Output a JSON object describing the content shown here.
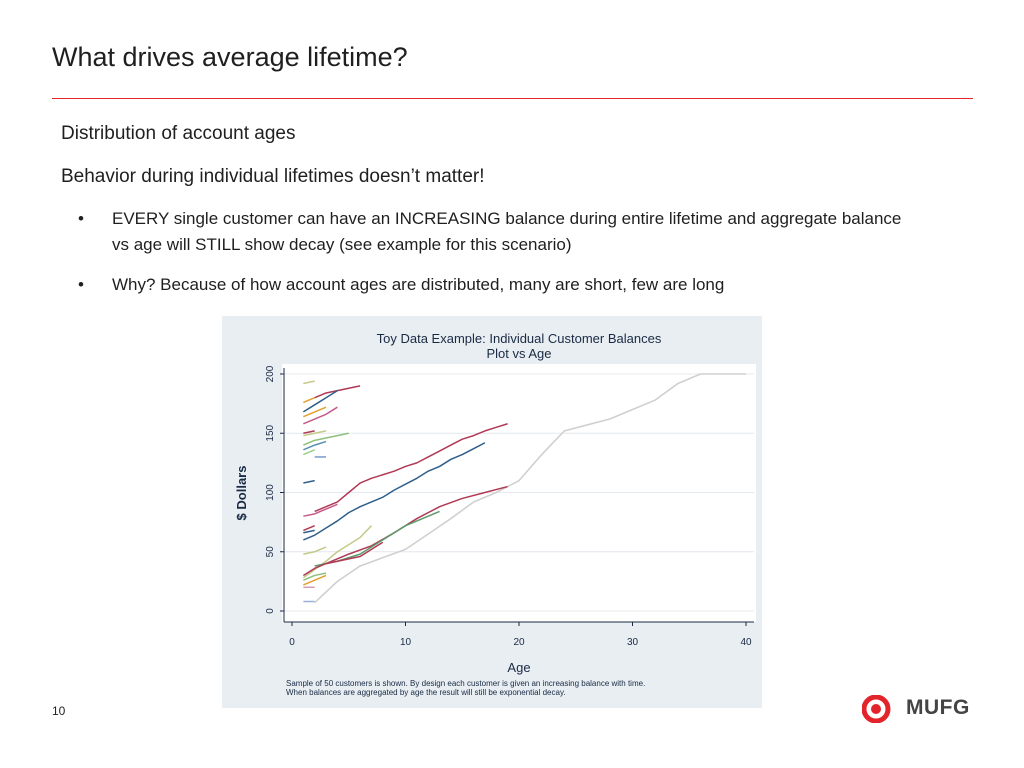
{
  "slide": {
    "title": "What drives average lifetime?",
    "subtitle1": "Distribution of account ages",
    "subtitle2": "Behavior during individual lifetimes doesn’t matter!",
    "bullets": [
      {
        "marker": "•",
        "text": "EVERY single customer can have an INCREASING balance during entire lifetime and aggregate balance vs age will STILL show decay  (see example for this scenario)"
      },
      {
        "marker": "•",
        "text": "Why? Because of how account ages are distributed, many are short, few are long"
      }
    ],
    "page_number": "10",
    "logo_text": "MUFG",
    "accent_color": "#e4242b"
  },
  "chart_data": {
    "type": "line",
    "title": "Toy Data Example: Individual Customer Balances",
    "subtitle": "Plot vs Age",
    "xlabel": "Age",
    "ylabel": "$ Dollars",
    "xlim": [
      0,
      40
    ],
    "ylim": [
      0,
      200
    ],
    "xticks": [
      0,
      10,
      20,
      30,
      40
    ],
    "yticks": [
      0,
      50,
      100,
      150,
      200
    ],
    "grid": true,
    "note_lines": [
      "Sample of 50 customers is shown. By design each customer is given an increasing balance with time.",
      "When balances are aggregated by age the result will still be exponential decay."
    ],
    "series": [
      {
        "color": "#d0d0d0",
        "x": [
          2,
          4,
          6,
          8,
          10,
          12,
          14,
          16,
          18,
          20,
          22,
          24,
          26,
          28,
          30,
          32,
          34,
          36,
          38,
          40
        ],
        "y": [
          7,
          25,
          38,
          45,
          52,
          65,
          78,
          92,
          100,
          110,
          132,
          152,
          157,
          162,
          170,
          178,
          192,
          200,
          200,
          200
        ]
      },
      {
        "color": "#b03a55",
        "x": [
          3,
          5,
          7,
          9,
          11,
          13,
          15,
          17,
          19
        ],
        "y": [
          40,
          48,
          55,
          66,
          78,
          88,
          95,
          100,
          105
        ]
      },
      {
        "color": "#b03a55",
        "x": [
          2,
          3,
          4,
          5,
          6,
          7,
          8,
          9,
          10,
          11,
          12,
          13,
          14,
          15,
          16,
          17,
          18,
          19
        ],
        "y": [
          84,
          88,
          92,
          100,
          108,
          112,
          115,
          118,
          122,
          125,
          130,
          135,
          140,
          145,
          148,
          152,
          155,
          158
        ]
      },
      {
        "color": "#2f5f8a",
        "x": [
          1,
          2,
          3,
          4,
          5,
          6,
          7,
          8,
          9,
          10,
          11,
          12,
          13,
          14,
          15,
          16,
          17
        ],
        "y": [
          60,
          64,
          70,
          76,
          83,
          88,
          92,
          96,
          102,
          107,
          112,
          118,
          122,
          128,
          132,
          137,
          142
        ]
      },
      {
        "color": "#c5c98a",
        "x": [
          1,
          2,
          3,
          4,
          5,
          6,
          7
        ],
        "y": [
          28,
          35,
          42,
          50,
          56,
          62,
          72
        ]
      },
      {
        "color": "#5a9a6a",
        "x": [
          2,
          4,
          6,
          8,
          10,
          12,
          13
        ],
        "y": [
          38,
          42,
          48,
          60,
          72,
          80,
          84
        ]
      },
      {
        "color": "#b03a55",
        "x": [
          1,
          2,
          3,
          4,
          5,
          6,
          7,
          8
        ],
        "y": [
          30,
          36,
          40,
          42,
          44,
          46,
          52,
          58
        ]
      },
      {
        "color": "#b03a55",
        "x": [
          2,
          3,
          4,
          5,
          6
        ],
        "y": [
          180,
          184,
          186,
          188,
          190
        ]
      },
      {
        "color": "#2f5f8a",
        "x": [
          1,
          2,
          3,
          4
        ],
        "y": [
          168,
          174,
          180,
          186
        ]
      },
      {
        "color": "#e0a030",
        "x": [
          1,
          2,
          3
        ],
        "y": [
          164,
          168,
          172
        ]
      },
      {
        "color": "#8ec07a",
        "x": [
          1,
          2,
          3,
          4,
          5
        ],
        "y": [
          140,
          144,
          146,
          148,
          150
        ]
      },
      {
        "color": "#c45a8a",
        "x": [
          1,
          2,
          3,
          4
        ],
        "y": [
          158,
          162,
          166,
          172
        ]
      },
      {
        "color": "#5a8fb0",
        "x": [
          1,
          2,
          3
        ],
        "y": [
          136,
          140,
          143
        ]
      },
      {
        "color": "#c5c98a",
        "x": [
          1,
          2,
          3
        ],
        "y": [
          148,
          150,
          152
        ]
      },
      {
        "color": "#9ad08a",
        "x": [
          1,
          2
        ],
        "y": [
          132,
          136
        ]
      },
      {
        "color": "#7a9ad0",
        "x": [
          2,
          3
        ],
        "y": [
          130,
          130
        ]
      },
      {
        "color": "#b03a55",
        "x": [
          1,
          2
        ],
        "y": [
          150,
          152
        ]
      },
      {
        "color": "#2f5f8a",
        "x": [
          1,
          2
        ],
        "y": [
          108,
          110
        ]
      },
      {
        "color": "#c45a8a",
        "x": [
          1,
          2,
          3,
          4
        ],
        "y": [
          80,
          82,
          86,
          90
        ]
      },
      {
        "color": "#e0a030",
        "x": [
          1,
          2
        ],
        "y": [
          176,
          180
        ]
      },
      {
        "color": "#c5c98a",
        "x": [
          1,
          2
        ],
        "y": [
          192,
          194
        ]
      },
      {
        "color": "#b03a55",
        "x": [
          1,
          2
        ],
        "y": [
          68,
          72
        ]
      },
      {
        "color": "#2f5f8a",
        "x": [
          1,
          2
        ],
        "y": [
          66,
          68
        ]
      },
      {
        "color": "#c5c98a",
        "x": [
          1,
          2,
          3
        ],
        "y": [
          48,
          50,
          54
        ]
      },
      {
        "color": "#e0a030",
        "x": [
          1,
          2,
          3
        ],
        "y": [
          22,
          26,
          30
        ]
      },
      {
        "color": "#9ab0d8",
        "x": [
          1,
          2
        ],
        "y": [
          8,
          8
        ]
      },
      {
        "color": "#d0a0b0",
        "x": [
          1,
          2
        ],
        "y": [
          20,
          20
        ]
      },
      {
        "color": "#8ec07a",
        "x": [
          1,
          2,
          3
        ],
        "y": [
          26,
          30,
          32
        ]
      }
    ]
  }
}
